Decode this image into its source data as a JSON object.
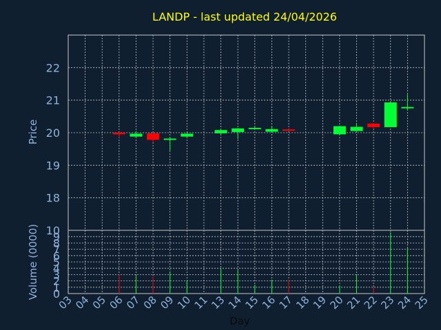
{
  "chart_data": {
    "type": "candlestick",
    "title": "LANDP - last updated 24/04/2026",
    "xlabel": "Day",
    "price_panel": {
      "ylabel": "Price",
      "ylim": [
        17,
        23
      ],
      "yticks": [
        18,
        19,
        20,
        21,
        22
      ],
      "grid": true
    },
    "volume_panel": {
      "ylabel": "Volume (0000)",
      "ylim": [
        0,
        10
      ],
      "yticks": [
        0,
        1,
        2,
        3,
        4,
        5,
        6,
        7,
        8,
        9,
        10
      ],
      "grid": true
    },
    "x_ticks": [
      "03",
      "04",
      "05",
      "06",
      "07",
      "08",
      "09",
      "10",
      "11",
      "13",
      "14",
      "15",
      "16",
      "17",
      "18",
      "19",
      "20",
      "21",
      "22",
      "23",
      "24",
      "25"
    ],
    "colors": {
      "up": "#00ff33",
      "down": "#ff0000",
      "background": "#0f1f30",
      "grid": "#c8c8c8",
      "axis_text": "#8fb3d9",
      "title": "#ffff00"
    },
    "candles": [
      {
        "day": "06",
        "open": 20.0,
        "high": 20.02,
        "low": 19.85,
        "close": 19.95,
        "volume": 3.0
      },
      {
        "day": "07",
        "open": 19.88,
        "high": 20.05,
        "low": 19.85,
        "close": 19.97,
        "volume": 2.8
      },
      {
        "day": "08",
        "open": 19.98,
        "high": 20.0,
        "low": 19.7,
        "close": 19.78,
        "volume": 2.7
      },
      {
        "day": "09",
        "open": 19.8,
        "high": 19.85,
        "low": 19.45,
        "close": 19.82,
        "volume": 3.5
      },
      {
        "day": "10",
        "open": 19.88,
        "high": 20.0,
        "low": 19.85,
        "close": 19.97,
        "volume": 2.1
      },
      {
        "day": "13",
        "open": 19.98,
        "high": 20.1,
        "low": 19.95,
        "close": 20.08,
        "volume": 4.0
      },
      {
        "day": "14",
        "open": 20.02,
        "high": 20.15,
        "low": 19.8,
        "close": 20.13,
        "volume": 3.7
      },
      {
        "day": "15",
        "open": 20.12,
        "high": 20.18,
        "low": 20.1,
        "close": 20.15,
        "volume": 1.4
      },
      {
        "day": "16",
        "open": 20.03,
        "high": 20.2,
        "low": 20.0,
        "close": 20.11,
        "volume": 2.2
      },
      {
        "day": "17",
        "open": 20.1,
        "high": 20.12,
        "low": 20.05,
        "close": 20.07,
        "volume": 2.2
      },
      {
        "day": "20",
        "open": 19.95,
        "high": 20.2,
        "low": 19.95,
        "close": 20.2,
        "volume": 1.3
      },
      {
        "day": "21",
        "open": 20.05,
        "high": 20.3,
        "low": 20.05,
        "close": 20.18,
        "volume": 2.9
      },
      {
        "day": "22",
        "open": 20.28,
        "high": 20.3,
        "low": 20.14,
        "close": 20.17,
        "volume": 1.0
      },
      {
        "day": "23",
        "open": 20.17,
        "high": 20.95,
        "low": 20.17,
        "close": 20.93,
        "volume": 9.7
      },
      {
        "day": "24",
        "open": 20.77,
        "high": 21.18,
        "low": 20.68,
        "close": 20.79,
        "volume": 7.2
      }
    ]
  }
}
